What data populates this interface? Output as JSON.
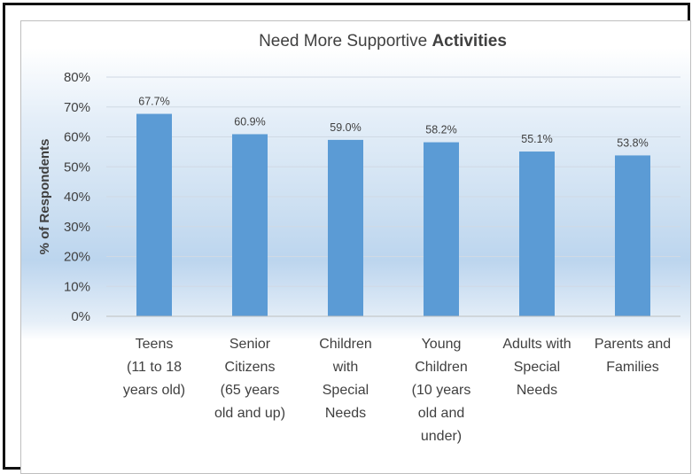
{
  "chart_data": {
    "type": "bar",
    "title": "Need More Supportive",
    "title_bold": "Activities",
    "ylabel": "% of Respondents",
    "xlabel": "",
    "ylim": [
      0,
      80
    ],
    "y_ticks": [
      "0%",
      "10%",
      "20%",
      "30%",
      "40%",
      "50%",
      "60%",
      "70%",
      "80%"
    ],
    "categories": [
      "Teens (11 to 18 years old)",
      "Senior Citizens (65 years old and up)",
      "Children with Special Needs",
      "Young Children (10 years old and under)",
      "Adults with Special Needs",
      "Parents and Families"
    ],
    "category_lines": [
      [
        "Teens",
        "(11 to 18",
        "years old)"
      ],
      [
        "Senior",
        "Citizens",
        "(65 years",
        "old and up)"
      ],
      [
        "Children",
        "with",
        "Special",
        "Needs"
      ],
      [
        "Young",
        "Children",
        "(10 years",
        "old and",
        "under)"
      ],
      [
        "Adults with",
        "Special",
        "Needs"
      ],
      [
        "Parents and",
        "Families"
      ]
    ],
    "values": [
      67.7,
      60.9,
      59.0,
      58.2,
      55.1,
      53.8
    ],
    "data_labels": [
      "67.7%",
      "60.9%",
      "59.0%",
      "58.2%",
      "55.1%",
      "53.8%"
    ],
    "bar_color": "#5b9bd5",
    "grid": true,
    "legend": "none"
  }
}
